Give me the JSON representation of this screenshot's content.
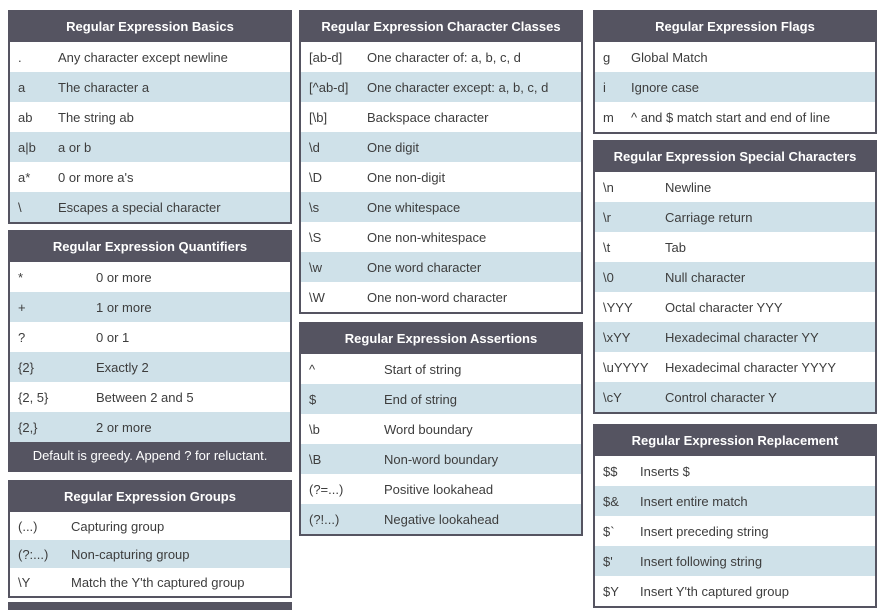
{
  "theme": {
    "header_bg": "#555461",
    "alt_row_bg": "#cfe1e9",
    "text_color": "#3d3d3d",
    "header_text": "#ffffff",
    "page_bg": "#ffffff"
  },
  "tables": [
    {
      "id": "basics",
      "title": "Regular Expression Basics",
      "rows": [
        {
          "code": ".",
          "desc": "Any character except newline"
        },
        {
          "code": "a",
          "desc": "The character a"
        },
        {
          "code": "ab",
          "desc": "The string ab"
        },
        {
          "code": "a|b",
          "desc": "a or b"
        },
        {
          "code": "a*",
          "desc": "0 or more a's"
        },
        {
          "code": "\\",
          "desc": "Escapes a special character"
        }
      ]
    },
    {
      "id": "quantifiers",
      "title": "Regular Expression Quantifiers",
      "rows": [
        {
          "code": "*",
          "desc": "0 or more"
        },
        {
          "code": "+",
          "desc": "1 or more"
        },
        {
          "code": "?",
          "desc": "0 or 1"
        },
        {
          "code": "{2}",
          "desc": "Exactly 2"
        },
        {
          "code": "{2, 5}",
          "desc": "Between 2 and 5"
        },
        {
          "code": "{2,}",
          "desc": "2 or more"
        }
      ],
      "footer": "Default is greedy. Append ? for reluctant."
    },
    {
      "id": "groups",
      "title": "Regular Expression Groups",
      "rows": [
        {
          "code": "(...)",
          "desc": "Capturing group"
        },
        {
          "code": "(?:...)",
          "desc": "Non-capturing group"
        },
        {
          "code": "\\Y",
          "desc": "Match the Y'th captured group"
        }
      ]
    },
    {
      "id": "classes",
      "title": "Regular Expression Character Classes",
      "rows": [
        {
          "code": "[ab-d]",
          "desc": "One character of: a, b, c, d"
        },
        {
          "code": "[^ab-d]",
          "desc": "One character except: a, b, c, d"
        },
        {
          "code": "[\\b]",
          "desc": "Backspace character"
        },
        {
          "code": "\\d",
          "desc": "One digit"
        },
        {
          "code": "\\D",
          "desc": "One non-digit"
        },
        {
          "code": "\\s",
          "desc": "One whitespace"
        },
        {
          "code": "\\S",
          "desc": "One non-whitespace"
        },
        {
          "code": "\\w",
          "desc": "One word character"
        },
        {
          "code": "\\W",
          "desc": "One non-word character"
        }
      ]
    },
    {
      "id": "assertions",
      "title": "Regular Expression Assertions",
      "rows": [
        {
          "code": "^",
          "desc": "Start of string"
        },
        {
          "code": "$",
          "desc": "End of string"
        },
        {
          "code": "\\b",
          "desc": "Word boundary"
        },
        {
          "code": "\\B",
          "desc": "Non-word boundary"
        },
        {
          "code": "(?=...)",
          "desc": "Positive lookahead"
        },
        {
          "code": "(?!...)",
          "desc": "Negative lookahead"
        }
      ]
    },
    {
      "id": "flags",
      "title": "Regular Expression Flags",
      "rows": [
        {
          "code": "g",
          "desc": "Global Match"
        },
        {
          "code": "i",
          "desc": "Ignore case"
        },
        {
          "code": "m",
          "desc": "^ and $ match start and end of line"
        }
      ]
    },
    {
      "id": "special",
      "title": "Regular Expression Special Characters",
      "rows": [
        {
          "code": "\\n",
          "desc": "Newline"
        },
        {
          "code": "\\r",
          "desc": "Carriage return"
        },
        {
          "code": "\\t",
          "desc": "Tab"
        },
        {
          "code": "\\0",
          "desc": "Null character"
        },
        {
          "code": "\\YYY",
          "desc": "Octal character YYY"
        },
        {
          "code": "\\xYY",
          "desc": "Hexadecimal character YY"
        },
        {
          "code": "\\uYYYY",
          "desc": "Hexadecimal character YYYY"
        },
        {
          "code": "\\cY",
          "desc": "Control character Y"
        }
      ]
    },
    {
      "id": "replacement",
      "title": "Regular Expression Replacement",
      "rows": [
        {
          "code": "$$",
          "desc": "Inserts $"
        },
        {
          "code": "$&",
          "desc": "Insert entire match"
        },
        {
          "code": "$`",
          "desc": "Insert preceding string"
        },
        {
          "code": "$'",
          "desc": "Insert following string"
        },
        {
          "code": "$Y",
          "desc": "Insert Y'th captured group"
        }
      ]
    }
  ]
}
